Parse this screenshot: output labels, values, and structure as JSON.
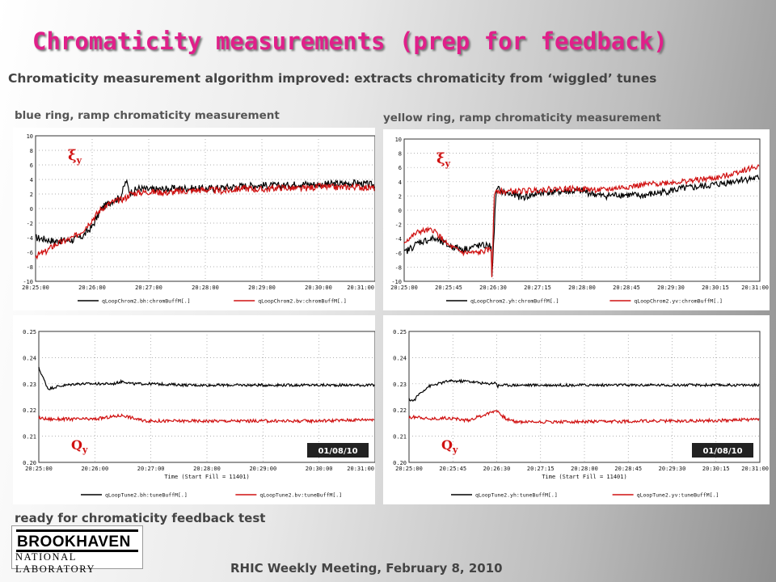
{
  "slide": {
    "title": "Chromaticity measurements (prep for feedback)",
    "subtitle": "Chromaticity measurement algorithm improved: extracts chromaticity from ‘wiggled’ tunes",
    "left_caption": "blue ring, ramp chromaticity measurement",
    "right_caption": "yellow ring, ramp chromaticity measurement",
    "ready_text": "ready for chromaticity feedback test",
    "footer": "RHIC Weekly Meeting,  February 8, 2010",
    "logo": {
      "line1": "BROOKHAVEN",
      "line2": "NATIONAL LABORATORY"
    }
  },
  "chart_data": [
    {
      "id": "blue-chrom",
      "type": "line",
      "annotation": "ξy",
      "xlabel": "",
      "x_ticks": [
        "20:25:00",
        "20:26:00",
        "20:27:00",
        "20:28:00",
        "20:29:00",
        "20:30:00",
        "20:31:00"
      ],
      "y_ticks": [
        "10",
        "8",
        "6",
        "4",
        "2",
        "0",
        "-2",
        "-4",
        "-6",
        "-8",
        "-10"
      ],
      "ylim": [
        -10,
        10
      ],
      "x_range_s": [
        0,
        360
      ],
      "legend": [
        "qLoopChrom2.bh:chromBuffM[.]",
        "qLoopChrom2.bv:chromBuffM[.]"
      ],
      "colors": [
        "#000000",
        "#d01010"
      ],
      "series": [
        {
          "name": "qLoopChrom2.bh:chromBuffM[.]",
          "x": [
            0,
            10,
            20,
            30,
            40,
            50,
            60,
            70,
            80,
            90,
            96,
            100,
            110,
            120,
            140,
            160,
            180,
            200,
            220,
            240,
            260,
            280,
            300,
            320,
            340,
            360
          ],
          "y": [
            -4.0,
            -4.2,
            -4.5,
            -4.4,
            -4.3,
            -3.8,
            -2.5,
            0.0,
            1.0,
            1.5,
            3.8,
            2.2,
            2.8,
            2.6,
            2.7,
            2.8,
            2.7,
            2.9,
            3.1,
            3.2,
            3.1,
            3.4,
            3.3,
            3.4,
            3.5,
            3.2
          ]
        },
        {
          "name": "qLoopChrom2.bv:chromBuffM[.]",
          "x": [
            0,
            10,
            20,
            30,
            40,
            50,
            60,
            70,
            80,
            90,
            96,
            100,
            110,
            120,
            140,
            160,
            180,
            200,
            220,
            240,
            260,
            280,
            300,
            320,
            340,
            360
          ],
          "y": [
            -6.5,
            -6.0,
            -5.0,
            -4.5,
            -4.0,
            -3.0,
            -1.5,
            0.0,
            0.8,
            1.2,
            1.5,
            2.0,
            2.2,
            2.3,
            2.2,
            2.4,
            2.6,
            2.4,
            2.8,
            2.6,
            2.9,
            2.7,
            3.0,
            2.9,
            3.0,
            2.8
          ]
        }
      ],
      "noise": [
        0.5,
        0.45
      ]
    },
    {
      "id": "blue-tune",
      "type": "line",
      "annotation": "Qy",
      "date_label": "01/08/10",
      "xlabel": "Time (Start Fill = 11401)",
      "x_ticks": [
        "20:25:00",
        "20:26:00",
        "20:27:00",
        "20:28:00",
        "20:29:00",
        "20:30:00",
        "20:31:00"
      ],
      "y_ticks": [
        "0.25",
        "0.24",
        "0.23",
        "0.22",
        "0.21",
        "0.20"
      ],
      "ylim": [
        0.2,
        0.25
      ],
      "x_range_s": [
        0,
        360
      ],
      "legend": [
        "qLoopTune2.bh:tuneBuffM[.]",
        "qLoopTune2.bv:tuneBuffM[.]"
      ],
      "colors": [
        "#000000",
        "#d01010"
      ],
      "series": [
        {
          "name": "qLoopTune2.bh:tuneBuffM[.]",
          "x": [
            0,
            5,
            10,
            20,
            40,
            60,
            80,
            90,
            100,
            120,
            160,
            200,
            240,
            280,
            320,
            360
          ],
          "y": [
            0.236,
            0.232,
            0.228,
            0.229,
            0.23,
            0.23,
            0.23,
            0.231,
            0.23,
            0.23,
            0.2295,
            0.2295,
            0.2295,
            0.2295,
            0.2295,
            0.2295
          ]
        },
        {
          "name": "qLoopTune2.bv:tuneBuffM[.]",
          "x": [
            0,
            10,
            20,
            40,
            60,
            80,
            90,
            100,
            110,
            120,
            160,
            200,
            240,
            280,
            320,
            360
          ],
          "y": [
            0.217,
            0.2165,
            0.2165,
            0.2165,
            0.2165,
            0.2175,
            0.218,
            0.217,
            0.216,
            0.2158,
            0.2158,
            0.2158,
            0.2158,
            0.2158,
            0.216,
            0.2165
          ]
        }
      ],
      "noise": [
        0.0005,
        0.0006
      ]
    },
    {
      "id": "yellow-chrom",
      "type": "line",
      "annotation": "ξy",
      "xlabel": "",
      "x_ticks": [
        "20:25:00",
        "20:25:45",
        "20:26:30",
        "20:27:15",
        "20:28:00",
        "20:28:45",
        "20:29:30",
        "20:30:15",
        "20:31:00"
      ],
      "y_ticks": [
        "10",
        "8",
        "6",
        "4",
        "2",
        "0",
        "-2",
        "-4",
        "-6",
        "-8",
        "-10"
      ],
      "ylim": [
        -10,
        10
      ],
      "x_range_s": [
        0,
        360
      ],
      "legend": [
        "qLoopChrom2.yh:chromBuffM[.]",
        "qLoopChrom2.yv:chromBuffM[.]"
      ],
      "colors": [
        "#000000",
        "#d01010"
      ],
      "series": [
        {
          "name": "qLoopChrom2.yh:chromBuffM[.]",
          "x": [
            0,
            15,
            30,
            45,
            60,
            75,
            88,
            89,
            91,
            93,
            95,
            100,
            120,
            140,
            160,
            180,
            200,
            220,
            240,
            260,
            280,
            300,
            320,
            340,
            360
          ],
          "y": [
            -6.0,
            -4.5,
            -4.0,
            -5.0,
            -5.5,
            -5.0,
            -5.0,
            -10.0,
            -3.0,
            2.5,
            3.0,
            2.5,
            1.8,
            2.5,
            2.6,
            2.7,
            2.0,
            2.2,
            2.0,
            2.5,
            3.0,
            3.3,
            3.7,
            4.3,
            4.5
          ]
        },
        {
          "name": "qLoopChrom2.yv:chromBuffM[.]",
          "x": [
            0,
            15,
            30,
            45,
            60,
            75,
            88,
            89,
            91,
            93,
            95,
            100,
            120,
            140,
            160,
            180,
            200,
            220,
            240,
            260,
            280,
            300,
            320,
            340,
            360
          ],
          "y": [
            -4.5,
            -3.0,
            -2.8,
            -5.0,
            -6.0,
            -6.0,
            -5.5,
            -10.0,
            2.0,
            3.0,
            2.8,
            2.6,
            2.7,
            2.9,
            3.0,
            3.0,
            2.8,
            3.2,
            3.5,
            3.8,
            4.0,
            4.3,
            4.6,
            5.5,
            6.2
          ]
        }
      ],
      "noise": [
        0.5,
        0.4
      ]
    },
    {
      "id": "yellow-tune",
      "type": "line",
      "annotation": "Qy",
      "date_label": "01/08/10",
      "xlabel": "Time (Start Fill = 11401)",
      "x_ticks": [
        "20:25:00",
        "20:25:45",
        "20:26:30",
        "20:27:15",
        "20:28:00",
        "20:28:45",
        "20:29:30",
        "20:30:15",
        "20:31:00"
      ],
      "y_ticks": [
        "0.25",
        "0.24",
        "0.23",
        "0.22",
        "0.21",
        "0.20"
      ],
      "ylim": [
        0.2,
        0.25
      ],
      "x_range_s": [
        0,
        360
      ],
      "legend": [
        "qLoopTune2.yh:tuneBuffM[.]",
        "qLoopTune2.yv:tuneBuffM[.]"
      ],
      "colors": [
        "#000000",
        "#d01010"
      ],
      "series": [
        {
          "name": "qLoopTune2.yh:tuneBuffM[.]",
          "x": [
            0,
            5,
            10,
            20,
            40,
            60,
            80,
            90,
            91,
            92,
            100,
            120,
            160,
            200,
            240,
            280,
            320,
            360
          ],
          "y": [
            0.224,
            0.2235,
            0.226,
            0.229,
            0.231,
            0.231,
            0.23,
            0.2305,
            0.228,
            0.2295,
            0.2295,
            0.2295,
            0.2295,
            0.2295,
            0.2295,
            0.2295,
            0.2295,
            0.2295
          ]
        },
        {
          "name": "qLoopTune2.yv:tuneBuffM[.]",
          "x": [
            0,
            10,
            20,
            40,
            60,
            80,
            90,
            95,
            100,
            110,
            120,
            160,
            200,
            240,
            280,
            320,
            360
          ],
          "y": [
            0.217,
            0.2175,
            0.2165,
            0.217,
            0.216,
            0.2185,
            0.22,
            0.218,
            0.2165,
            0.2155,
            0.2155,
            0.2155,
            0.2155,
            0.2158,
            0.2158,
            0.216,
            0.2165
          ]
        }
      ],
      "noise": [
        0.0005,
        0.0006
      ]
    }
  ]
}
